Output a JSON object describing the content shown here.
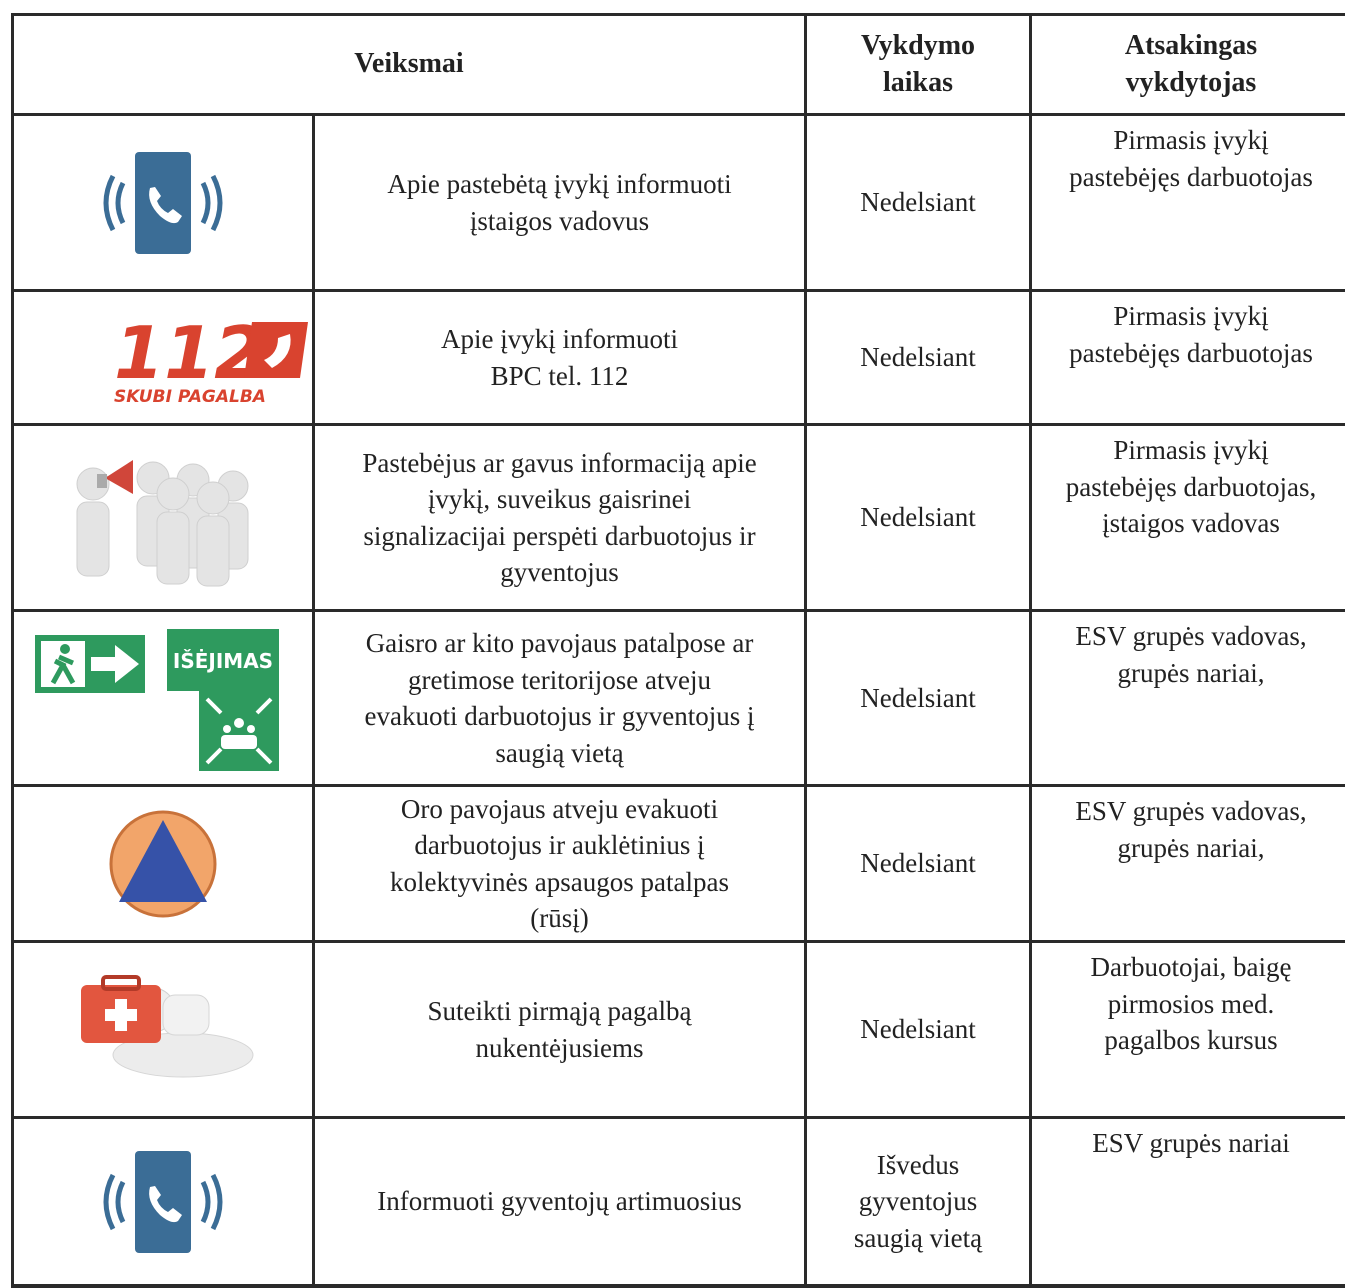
{
  "header": {
    "actions": [
      "Veiksmai"
    ],
    "time": [
      "Vykdymo",
      "laikas"
    ],
    "responsible": [
      "Atsakingas",
      "vykdytojas"
    ]
  },
  "rows": [
    {
      "action": [
        "Apie pastebėtą įvykį informuoti",
        "įstaigos vadovus"
      ],
      "time": [
        "Nedelsiant"
      ],
      "responsible": [
        "Pirmasis įvykį",
        "pastebėjęs darbuotojas"
      ]
    },
    {
      "icon_text": [
        "112",
        "SKUBI PAGALBA"
      ],
      "action": [
        "Apie įvykį informuoti",
        "BPC tel. 112"
      ],
      "time": [
        "Nedelsiant"
      ],
      "responsible": [
        "Pirmasis įvykį",
        "pastebėjęs darbuotojas"
      ]
    },
    {
      "action": [
        "Pastebėjus ar gavus informaciją apie",
        "įvykį, suveikus gaisrinei",
        "signalizacijai perspėti darbuotojus ir",
        "gyventojus"
      ],
      "time": [
        "Nedelsiant"
      ],
      "responsible": [
        "Pirmasis įvykį",
        "pastebėjęs darbuotojas,",
        "įstaigos vadovas"
      ]
    },
    {
      "icon_text": [
        "IŠĖJIMAS"
      ],
      "action": [
        "Gaisro ar kito pavojaus patalpose ar",
        "gretimose teritorijose atveju",
        "evakuoti darbuotojus ir gyventojus į",
        "saugią vietą"
      ],
      "time": [
        "Nedelsiant"
      ],
      "responsible": [
        "ESV grupės vadovas,",
        "grupės nariai,"
      ]
    },
    {
      "action": [
        "Oro pavojaus atveju evakuoti",
        "darbuotojus ir auklėtinius į",
        "kolektyvinės apsaugos patalpas",
        "(rūsį)"
      ],
      "time": [
        "Nedelsiant"
      ],
      "responsible": [
        "ESV grupės vadovas,",
        "grupės nariai,"
      ]
    },
    {
      "action": [
        "Suteikti pirmąją pagalbą",
        "nukentėjusiems"
      ],
      "time": [
        "Nedelsiant"
      ],
      "responsible": [
        "Darbuotojai, baigę",
        "pirmosios med.",
        "pagalbos kursus"
      ]
    },
    {
      "action": [
        "Informuoti gyventojų artimuosius"
      ],
      "time": [
        "Išvedus",
        "gyventojus",
        "saugią vietą"
      ],
      "responsible": [
        "ESV grupės nariai"
      ]
    }
  ]
}
